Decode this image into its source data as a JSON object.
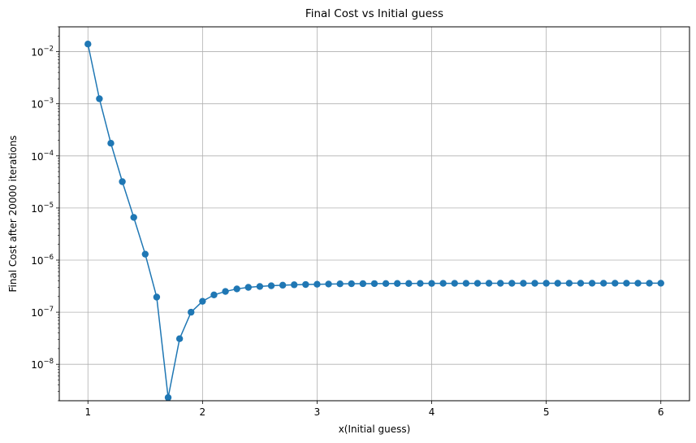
{
  "chart_data": {
    "type": "line",
    "title": "Final Cost vs Initial guess",
    "xlabel": "x(Initial guess)",
    "ylabel": "Final Cost after 20000 iterations",
    "yscale": "log",
    "xlim": [
      0.75,
      6.25
    ],
    "ylim": [
      2e-09,
      0.03
    ],
    "grid": true,
    "xticks": [
      1,
      2,
      3,
      4,
      5,
      6
    ],
    "xtick_labels": [
      "1",
      "2",
      "3",
      "4",
      "5",
      "6"
    ],
    "yticks": [
      1e-08,
      1e-07,
      1e-06,
      1e-05,
      0.0001,
      0.001,
      0.01
    ],
    "ytick_labels": [
      {
        "base": "10",
        "exp": "−8"
      },
      {
        "base": "10",
        "exp": "−7"
      },
      {
        "base": "10",
        "exp": "−6"
      },
      {
        "base": "10",
        "exp": "−5"
      },
      {
        "base": "10",
        "exp": "−4"
      },
      {
        "base": "10",
        "exp": "−3"
      },
      {
        "base": "10",
        "exp": "−2"
      }
    ],
    "series": [
      {
        "color": "#1f77b4",
        "marker": "circle",
        "x": [
          1.0,
          1.1,
          1.2,
          1.3,
          1.4,
          1.5,
          1.6,
          1.7,
          1.8,
          1.9,
          2.0,
          2.1,
          2.2,
          2.3,
          2.4,
          2.5,
          2.6,
          2.7,
          2.8,
          2.9,
          3.0,
          3.1,
          3.2,
          3.3,
          3.4,
          3.5,
          3.6,
          3.7,
          3.8,
          3.9,
          4.0,
          4.1,
          4.2,
          4.3,
          4.4,
          4.5,
          4.6,
          4.7,
          4.8,
          4.9,
          5.0,
          5.1,
          5.2,
          5.3,
          5.4,
          5.5,
          5.6,
          5.7,
          5.8,
          5.9,
          6.0
        ],
        "y": [
          0.014,
          0.00125,
          0.000175,
          3.2e-05,
          6.6e-06,
          1.3e-06,
          1.95e-07,
          2.3e-09,
          3.1e-08,
          1e-07,
          1.62e-07,
          2.15e-07,
          2.5e-07,
          2.8e-07,
          3e-07,
          3.12e-07,
          3.22e-07,
          3.3e-07,
          3.36e-07,
          3.4e-07,
          3.44e-07,
          3.47e-07,
          3.5e-07,
          3.52e-07,
          3.53e-07,
          3.54e-07,
          3.55e-07,
          3.56e-07,
          3.56e-07,
          3.57e-07,
          3.57e-07,
          3.58e-07,
          3.58e-07,
          3.58e-07,
          3.58e-07,
          3.59e-07,
          3.59e-07,
          3.59e-07,
          3.59e-07,
          3.59e-07,
          3.59e-07,
          3.59e-07,
          3.6e-07,
          3.6e-07,
          3.6e-07,
          3.6e-07,
          3.6e-07,
          3.6e-07,
          3.6e-07,
          3.6e-07,
          3.6e-07
        ]
      }
    ]
  }
}
